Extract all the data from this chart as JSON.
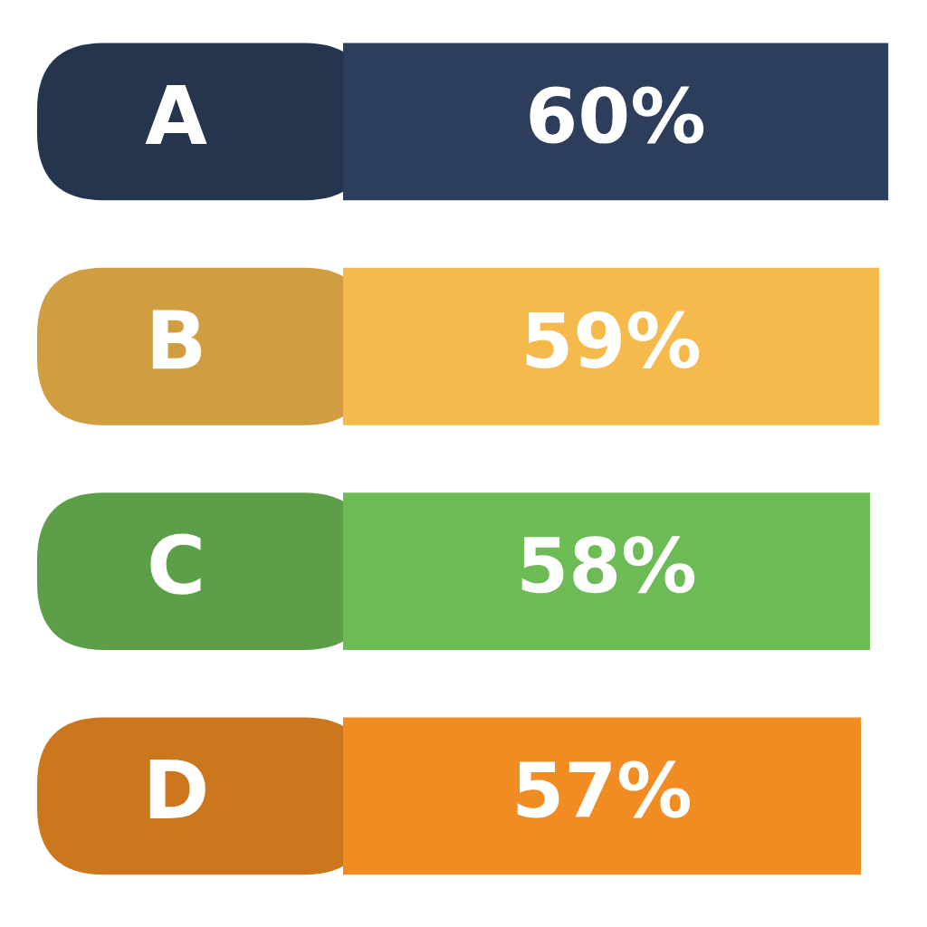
{
  "chart_data": {
    "type": "bar",
    "orientation": "horizontal",
    "categories": [
      "A",
      "B",
      "C",
      "D"
    ],
    "values": [
      60,
      59,
      58,
      57
    ],
    "value_labels": [
      "60%",
      "59%",
      "58%",
      "57%"
    ],
    "colors": [
      "#2c3e5c",
      "#f6b94c",
      "#6cbb55",
      "#f08c22"
    ],
    "legend": false
  }
}
